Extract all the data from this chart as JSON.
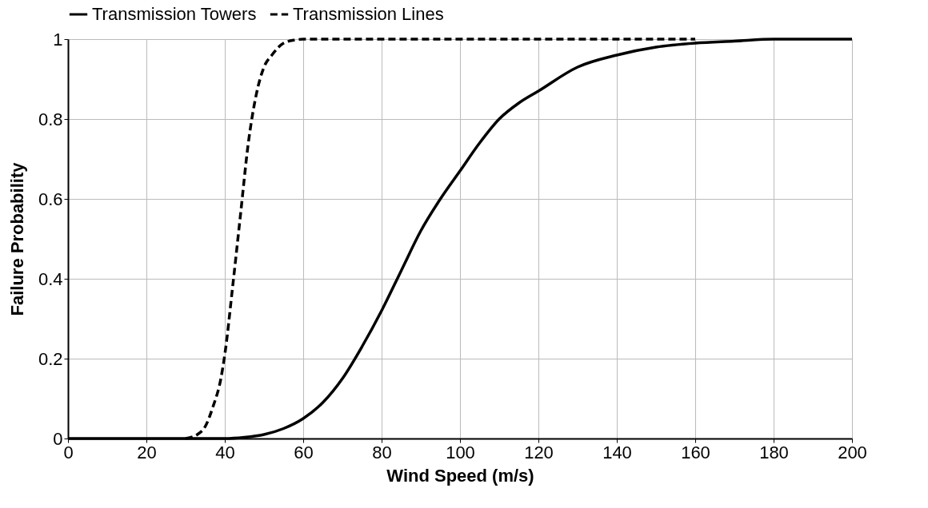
{
  "chart_data": {
    "type": "line",
    "xlabel": "Wind Speed (m/s)",
    "ylabel": "Failure Probability",
    "xlim": [
      0,
      200
    ],
    "xticks": [
      0,
      20,
      40,
      60,
      80,
      100,
      120,
      140,
      160,
      180,
      200
    ],
    "ylim": [
      0,
      1
    ],
    "yticks": [
      0,
      0.2,
      0.4,
      0.6,
      0.8,
      1
    ],
    "grid": true,
    "legend": "top",
    "marker": "none",
    "series": [
      {
        "name": "Transmission Towers",
        "color": "#000000",
        "line_style": "solid",
        "x": [
          0,
          40,
          45,
          50,
          55,
          60,
          65,
          70,
          75,
          80,
          85,
          90,
          95,
          100,
          105,
          110,
          115,
          120,
          130,
          140,
          150,
          160,
          170,
          180,
          200
        ],
        "values": [
          0,
          0,
          0.003,
          0.01,
          0.025,
          0.05,
          0.09,
          0.15,
          0.23,
          0.32,
          0.42,
          0.52,
          0.6,
          0.67,
          0.74,
          0.8,
          0.84,
          0.87,
          0.93,
          0.96,
          0.98,
          0.99,
          0.995,
          1,
          1
        ]
      },
      {
        "name": "Transmission Lines",
        "color": "#000000",
        "line_style": "dashed",
        "x": [
          30,
          33,
          35,
          37,
          39,
          40,
          42,
          44,
          46,
          48,
          50,
          52,
          55,
          58,
          60,
          160
        ],
        "values": [
          0,
          0.01,
          0.03,
          0.08,
          0.15,
          0.21,
          0.38,
          0.56,
          0.74,
          0.86,
          0.93,
          0.96,
          0.99,
          0.998,
          1,
          1
        ]
      }
    ]
  }
}
